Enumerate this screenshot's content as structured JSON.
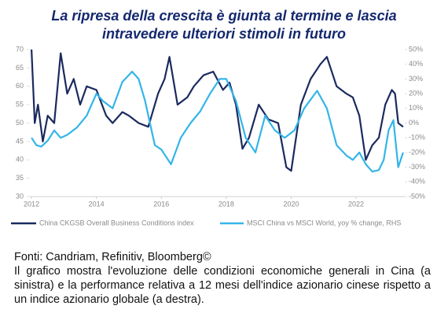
{
  "chart_data": {
    "type": "line",
    "title_lines": [
      "La ripresa della crescita è giunta al termine e lascia",
      "intravedere ulteriori stimoli in futuro"
    ],
    "xlim": [
      2011.95,
      2023.5
    ],
    "xticks": [
      2012,
      2014,
      2016,
      2018,
      2020,
      2022
    ],
    "ylim": [
      30,
      70
    ],
    "yticks": [
      30,
      35,
      40,
      45,
      50,
      55,
      60,
      65,
      70
    ],
    "y2lim": [
      -50,
      50
    ],
    "y2ticks": [
      {
        "value": -50,
        "label": "-50%"
      },
      {
        "value": -40,
        "label": "-40%"
      },
      {
        "value": -30,
        "label": "-30%"
      },
      {
        "value": -20,
        "label": "-20%"
      },
      {
        "value": -10,
        "label": "-10%"
      },
      {
        "value": 0,
        "label": "0%"
      },
      {
        "value": 10,
        "label": "10%"
      },
      {
        "value": 20,
        "label": "20%"
      },
      {
        "value": 30,
        "label": "30%"
      },
      {
        "value": 40,
        "label": "40%"
      },
      {
        "value": 50,
        "label": "50%"
      }
    ],
    "series": [
      {
        "name": "China CKGSB Overall Business Conditions index",
        "color": "#1b2a5e",
        "axis": "y",
        "x": [
          2012,
          2012.1,
          2012.2,
          2012.35,
          2012.5,
          2012.7,
          2012.9,
          2013.1,
          2013.3,
          2013.5,
          2013.7,
          2014,
          2014.3,
          2014.5,
          2014.8,
          2015,
          2015.3,
          2015.6,
          2015.9,
          2016.1,
          2016.25,
          2016.5,
          2016.8,
          2017,
          2017.3,
          2017.6,
          2017.9,
          2018.1,
          2018.3,
          2018.5,
          2018.7,
          2019,
          2019.3,
          2019.6,
          2019.85,
          2020.0,
          2020.3,
          2020.6,
          2020.9,
          2021.1,
          2021.4,
          2021.7,
          2021.9,
          2022.1,
          2022.3,
          2022.5,
          2022.7,
          2022.9,
          2023.1,
          2023.2,
          2023.3,
          2023.45
        ],
        "values": [
          70,
          50,
          55,
          45,
          52,
          50,
          69,
          58,
          62,
          55,
          60,
          59,
          52,
          50,
          53,
          52,
          50,
          49,
          58,
          62,
          68,
          55,
          57,
          60,
          63,
          64,
          59,
          61,
          55,
          43,
          46,
          55,
          51,
          50,
          38,
          37,
          55,
          62,
          66,
          68,
          60,
          58,
          57,
          52,
          40,
          44,
          46,
          55,
          59,
          58,
          50,
          49
        ]
      },
      {
        "name": "MSCI China vs MSCI World, yoy % change, RHS",
        "color": "#33b5e8",
        "axis": "y2",
        "x": [
          2012,
          2012.15,
          2012.3,
          2012.5,
          2012.7,
          2012.9,
          2013.1,
          2013.4,
          2013.7,
          2014,
          2014.2,
          2014.5,
          2014.8,
          2015.1,
          2015.3,
          2015.5,
          2015.8,
          2016,
          2016.3,
          2016.6,
          2016.9,
          2017.2,
          2017.5,
          2017.8,
          2018,
          2018.3,
          2018.6,
          2018.9,
          2019.2,
          2019.5,
          2019.8,
          2020.1,
          2020.4,
          2020.8,
          2021.1,
          2021.4,
          2021.7,
          2021.9,
          2022.1,
          2022.3,
          2022.5,
          2022.7,
          2022.85,
          2023.0,
          2023.15,
          2023.3,
          2023.45
        ],
        "values": [
          -10,
          -15,
          -16,
          -12,
          -5,
          -10,
          -8,
          -3,
          5,
          20,
          15,
          10,
          28,
          35,
          30,
          15,
          -15,
          -18,
          -28,
          -10,
          0,
          8,
          20,
          30,
          30,
          15,
          -10,
          -20,
          5,
          -5,
          -10,
          -5,
          10,
          22,
          10,
          -15,
          -22,
          -25,
          -20,
          -28,
          -33,
          -32,
          -25,
          -5,
          2,
          -30,
          -20
        ]
      }
    ]
  },
  "source": "Fonti: Candriam, Refinitiv, Bloomberg©",
  "note": "Il grafico mostra l'evoluzione delle condizioni economiche generali in Cina (a sinistra) e la performance relativa a 12 mesi dell'indice azionario cinese rispetto a un indice azionario globale (a destra)."
}
